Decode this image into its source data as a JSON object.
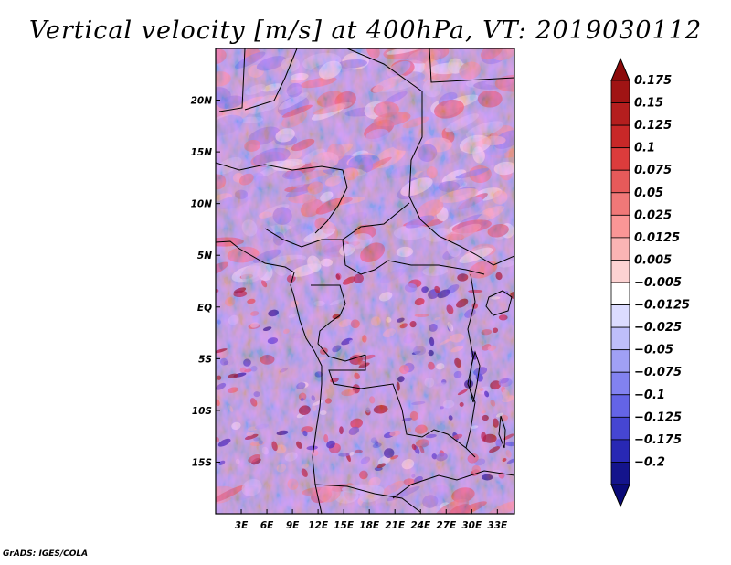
{
  "chart_data": {
    "type": "heatmap",
    "title": "Vertical velocity [m/s] at 400hPa, VT: 2019030112",
    "variable": "Vertical velocity",
    "units": "m/s",
    "level": "400hPa",
    "valid_time": "2019030112",
    "xlim": [
      0,
      35
    ],
    "ylim": [
      -20,
      25
    ],
    "x_ticks": [
      {
        "value": 3,
        "label": "3E"
      },
      {
        "value": 6,
        "label": "6E"
      },
      {
        "value": 9,
        "label": "9E"
      },
      {
        "value": 12,
        "label": "12E"
      },
      {
        "value": 15,
        "label": "15E"
      },
      {
        "value": 18,
        "label": "18E"
      },
      {
        "value": 21,
        "label": "21E"
      },
      {
        "value": 24,
        "label": "24E"
      },
      {
        "value": 27,
        "label": "27E"
      },
      {
        "value": 30,
        "label": "30E"
      },
      {
        "value": 33,
        "label": "33E"
      }
    ],
    "y_ticks": [
      {
        "value": 20,
        "label": "20N"
      },
      {
        "value": 15,
        "label": "15N"
      },
      {
        "value": 10,
        "label": "10N"
      },
      {
        "value": 5,
        "label": "5N"
      },
      {
        "value": 0,
        "label": "EQ"
      },
      {
        "value": -5,
        "label": "5S"
      },
      {
        "value": -10,
        "label": "10S"
      },
      {
        "value": -15,
        "label": "15S"
      }
    ],
    "colorbar": {
      "levels": [
        {
          "label": "0.175",
          "color": "#a01414"
        },
        {
          "label": "0.15",
          "color": "#b41e1e"
        },
        {
          "label": "0.125",
          "color": "#c82828"
        },
        {
          "label": "0.1",
          "color": "#dc3c3c"
        },
        {
          "label": "0.075",
          "color": "#e65a5a"
        },
        {
          "label": "0.05",
          "color": "#f07878"
        },
        {
          "label": "0.025",
          "color": "#fa9696"
        },
        {
          "label": "0.0125",
          "color": "#fab4b4"
        },
        {
          "label": "0.005",
          "color": "#fcd2d2"
        },
        {
          "label": "−0.005",
          "color": "#ffffff"
        },
        {
          "label": "−0.0125",
          "color": "#dcdcff"
        },
        {
          "label": "−0.025",
          "color": "#bebefa"
        },
        {
          "label": "−0.05",
          "color": "#a0a0f5"
        },
        {
          "label": "−0.075",
          "color": "#8282f0"
        },
        {
          "label": "−0.1",
          "color": "#6464e6"
        },
        {
          "label": "−0.125",
          "color": "#4646d2"
        },
        {
          "label": "−0.175",
          "color": "#2828b4"
        },
        {
          "label": "−0.2",
          "color": "#14148c"
        }
      ],
      "top_color": "#8c0a0a",
      "bottom_color": "#0a0a78"
    }
  },
  "credit": "GrADS: IGES/COLA"
}
